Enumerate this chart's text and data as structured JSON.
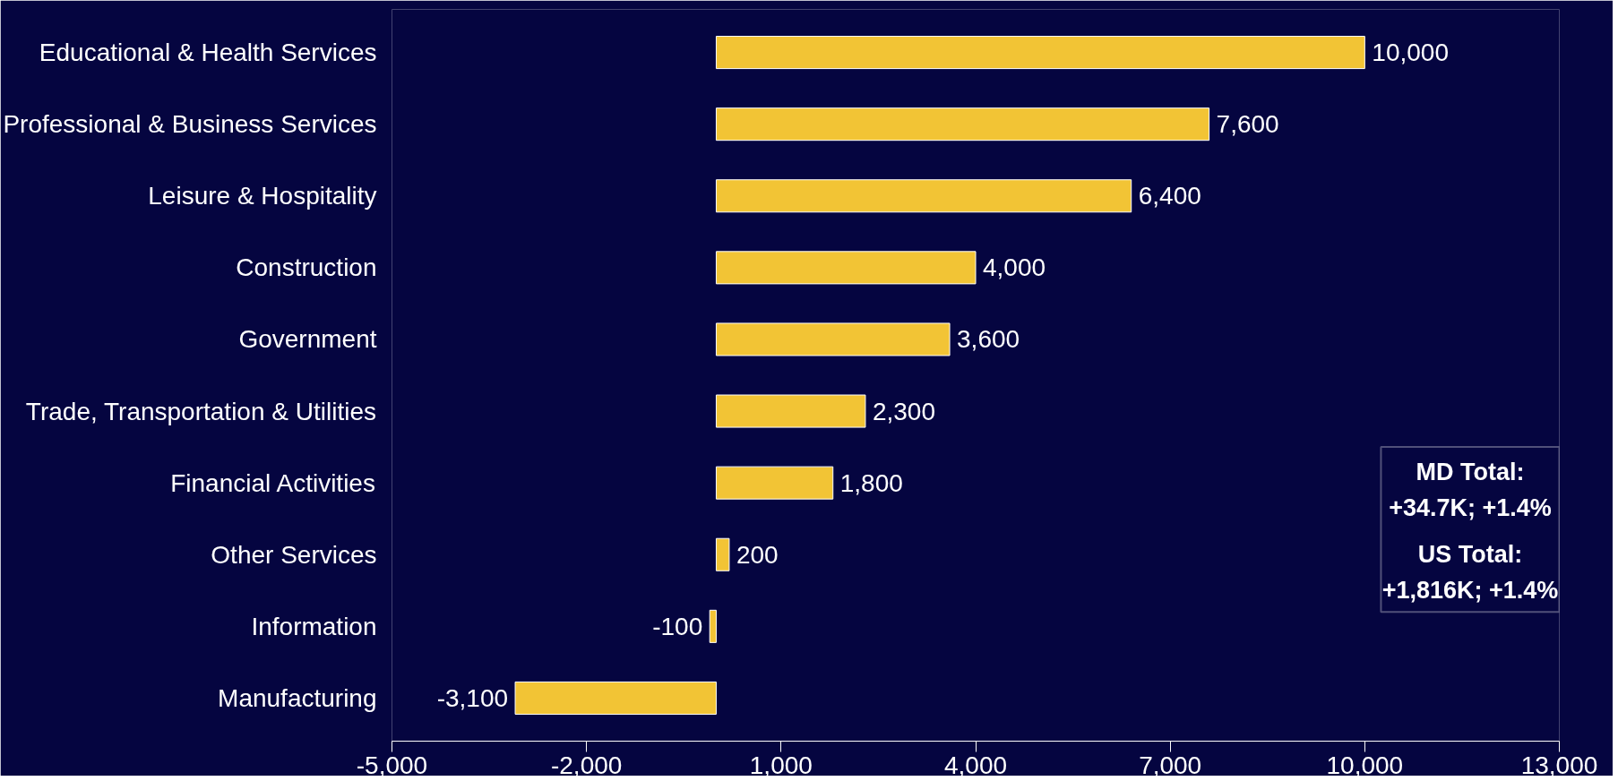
{
  "chart_data": {
    "type": "bar",
    "orientation": "horizontal",
    "categories": [
      "Educational & Health Services",
      "Professional & Business Services",
      "Leisure & Hospitality",
      "Construction",
      "Government",
      "Trade, Transportation & Utilities",
      "Financial Activities",
      "Other Services",
      "Information",
      "Manufacturing"
    ],
    "values": [
      10000,
      7600,
      6400,
      4000,
      3600,
      2300,
      1800,
      200,
      -100,
      -3100
    ],
    "value_labels": [
      "10,000",
      "7,600",
      "6,400",
      "4,000",
      "3,600",
      "2,300",
      "1,800",
      "200",
      "-100",
      "-3,100"
    ],
    "color": "#f2c435",
    "xlim": [
      -5000,
      13000
    ],
    "xticks": [
      {
        "value": -5000,
        "label": "-5,000"
      },
      {
        "value": -2000,
        "label": "-2,000"
      },
      {
        "value": 1000,
        "label": "1,000"
      },
      {
        "value": 4000,
        "label": "4,000"
      },
      {
        "value": 7000,
        "label": "7,000"
      },
      {
        "value": 10000,
        "label": "10,000"
      },
      {
        "value": 13000,
        "label": "13,000"
      }
    ],
    "grid": false,
    "annotations": [
      "MD Total:",
      "+34.7K; +1.4%",
      "US Total:",
      "+1,816K; +1.4%"
    ]
  }
}
